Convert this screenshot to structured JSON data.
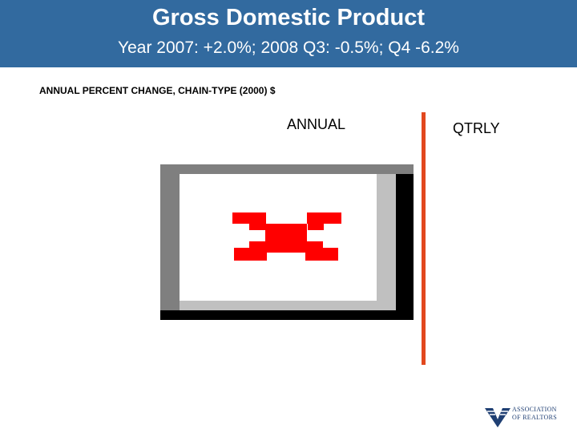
{
  "header": {
    "title": "Gross Domestic Product",
    "subtitle": "Year 2007: +2.0%; 2008 Q3: -0.5%; Q4 -6.2%"
  },
  "section_label": "ANNUAL PERCENT CHANGE, CHAIN-TYPE (2000) $",
  "panels": {
    "annual": "ANNUAL",
    "qtrly": "QTRLY"
  },
  "colors": {
    "header_bg": "#326a9f",
    "divider": "#e2481e",
    "bar_red": "#ff0000",
    "frame_dark": "#7f7f7f",
    "frame_light": "#c0c0c0",
    "frame_shadow": "#000000"
  },
  "logo": {
    "line1": "ASSOCIATION",
    "line2": "OF REALTORS",
    "icon": "realtors-flag-icon"
  },
  "chart_data": {
    "type": "bar",
    "title": "",
    "categories": [],
    "values": [],
    "note_visible": "placeholder chart graphic rendered with no readable data values"
  }
}
